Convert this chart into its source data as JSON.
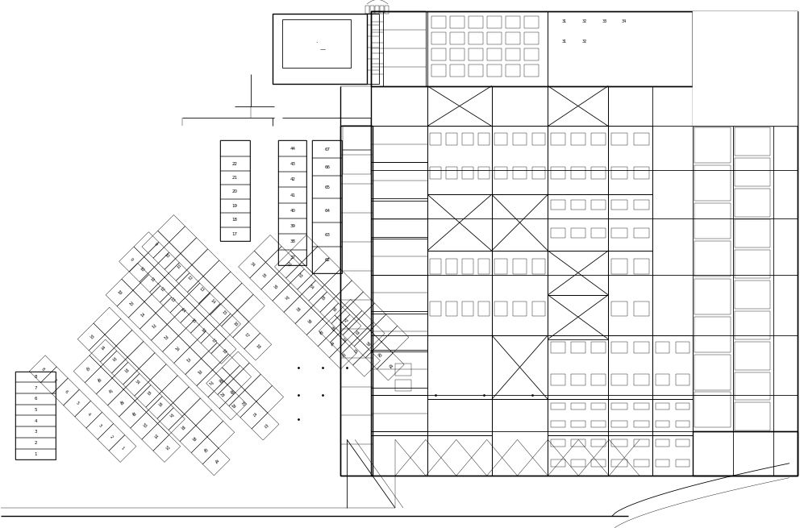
{
  "bg_color": "#ffffff",
  "line_color": "#000000",
  "fig_width": 9.97,
  "fig_height": 6.55
}
